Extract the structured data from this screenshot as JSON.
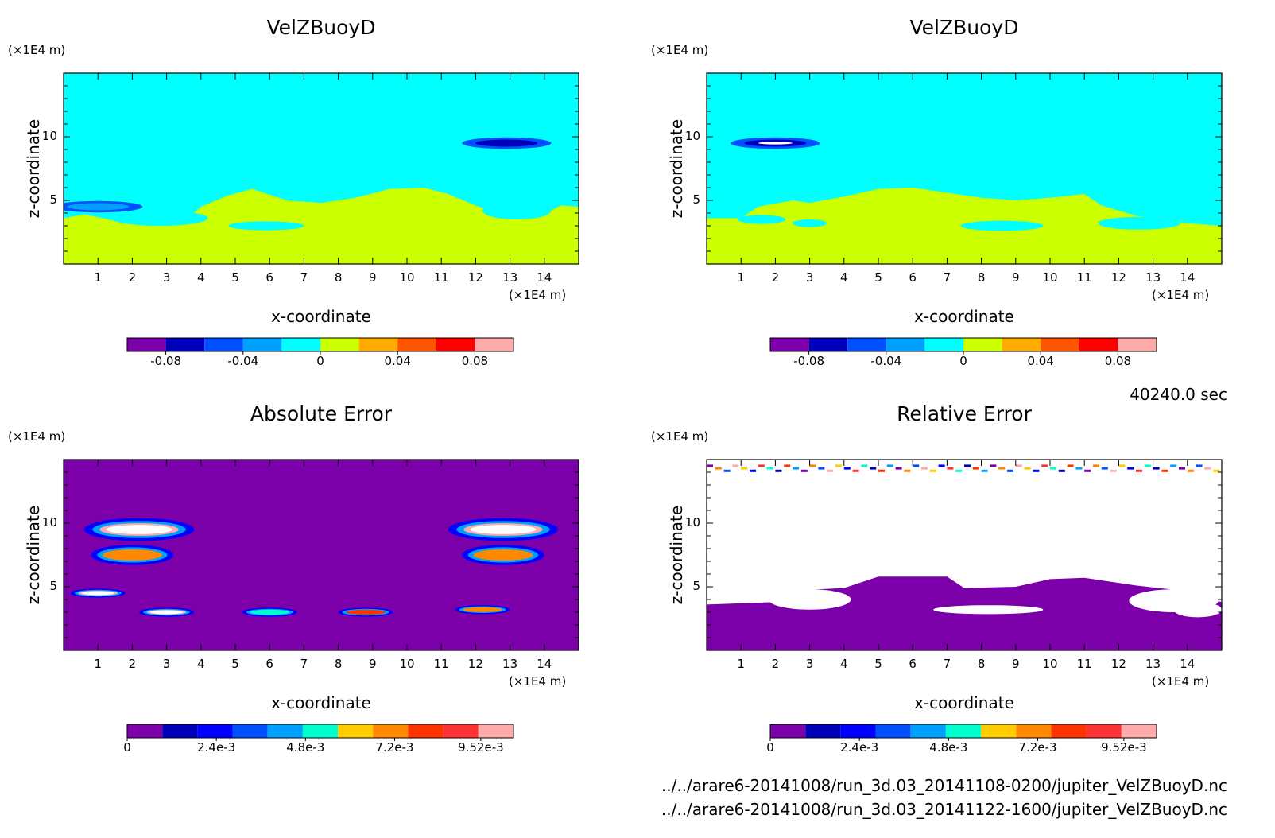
{
  "figure": {
    "timestamp": "40240.0 sec",
    "files": [
      "../../arare6-20141008/run_3d.03_20141108-0200/jupiter_VelZBuoyD.nc",
      "../../arare6-20141008/run_3d.03_20141122-1600/jupiter_VelZBuoyD.nc"
    ]
  },
  "chart_data": [
    {
      "type": "heatmap",
      "title": "VelZBuoyD",
      "xlabel": "x-coordinate",
      "ylabel": "z-coordinate",
      "x_unit": "(×1E4 m)",
      "y_unit": "(×1E4 m)",
      "xlim": [
        0,
        15
      ],
      "ylim": [
        0,
        15
      ],
      "xticks": [
        "1",
        "2",
        "3",
        "4",
        "5",
        "6",
        "7",
        "8",
        "9",
        "10",
        "11",
        "12",
        "13",
        "14"
      ],
      "yticks": [
        "5",
        "10"
      ],
      "background_value": 0,
      "lower_layer_value": 0.01,
      "features": [
        {
          "x": 12.9,
          "z": 9.5,
          "value": -0.07,
          "kind": "downdraft"
        },
        {
          "x": 1.0,
          "z": 4.5,
          "value": -0.04,
          "kind": "weak downdraft"
        }
      ],
      "colorbar": {
        "colors": [
          "#7c00aa",
          "#0000bb",
          "#0050ff",
          "#00a0ff",
          "#00ffff",
          "#ccff00",
          "#ffaa00",
          "#ff5500",
          "#ff0000",
          "#ffaaaa"
        ],
        "tick_labels": [
          "-0.08",
          "-0.04",
          "0",
          "0.04",
          "0.08"
        ]
      }
    },
    {
      "type": "heatmap",
      "title": "VelZBuoyD",
      "xlabel": "x-coordinate",
      "ylabel": "z-coordinate",
      "x_unit": "(×1E4 m)",
      "y_unit": "(×1E4 m)",
      "xlim": [
        0,
        15
      ],
      "ylim": [
        0,
        15
      ],
      "xticks": [
        "1",
        "2",
        "3",
        "4",
        "5",
        "6",
        "7",
        "8",
        "9",
        "10",
        "11",
        "12",
        "13",
        "14"
      ],
      "yticks": [
        "5",
        "10"
      ],
      "background_value": 0,
      "lower_layer_value": 0.01,
      "features": [
        {
          "x": 2.0,
          "z": 9.5,
          "value": -0.08,
          "kind": "downdraft"
        }
      ],
      "colorbar": {
        "colors": [
          "#7c00aa",
          "#0000bb",
          "#0050ff",
          "#00a0ff",
          "#00ffff",
          "#ccff00",
          "#ffaa00",
          "#ff5500",
          "#ff0000",
          "#ffaaaa"
        ],
        "tick_labels": [
          "-0.08",
          "-0.04",
          "0",
          "0.04",
          "0.08"
        ]
      }
    },
    {
      "type": "heatmap",
      "title": "Absolute Error",
      "xlabel": "x-coordinate",
      "ylabel": "z-coordinate",
      "x_unit": "(×1E4 m)",
      "y_unit": "(×1E4 m)",
      "xlim": [
        0,
        15
      ],
      "ylim": [
        0,
        15
      ],
      "xticks": [
        "1",
        "2",
        "3",
        "4",
        "5",
        "6",
        "7",
        "8",
        "9",
        "10",
        "11",
        "12",
        "13",
        "14"
      ],
      "yticks": [
        "5",
        "10"
      ],
      "background_value": 0,
      "features": [
        {
          "x": 2.2,
          "z": 9.5,
          "value": 0.0095
        },
        {
          "x": 12.8,
          "z": 9.5,
          "value": 0.0095
        },
        {
          "x": 2.0,
          "z": 7.5,
          "value": 0.007
        },
        {
          "x": 12.8,
          "z": 7.5,
          "value": 0.007
        },
        {
          "x": 1.0,
          "z": 4.5,
          "value": 0.0095
        },
        {
          "x": 3.0,
          "z": 3.0,
          "value": 0.0095
        },
        {
          "x": 8.8,
          "z": 3.0,
          "value": 0.008
        },
        {
          "x": 6.0,
          "z": 3.0,
          "value": 0.005
        },
        {
          "x": 12.2,
          "z": 3.2,
          "value": 0.007
        }
      ],
      "colorbar": {
        "colors": [
          "#7c00aa",
          "#0000bb",
          "#0000ff",
          "#0050ff",
          "#00a0ff",
          "#00ffcc",
          "#ffcc00",
          "#ff8800",
          "#ff3300",
          "#ff3333",
          "#ffaaaa"
        ],
        "tick_labels": [
          "0",
          "2.4e-3",
          "4.8e-3",
          "7.2e-3",
          "9.52e-3"
        ]
      }
    },
    {
      "type": "heatmap",
      "title": "Relative Error",
      "xlabel": "x-coordinate",
      "ylabel": "z-coordinate",
      "x_unit": "(×1E4 m)",
      "y_unit": "(×1E4 m)",
      "xlim": [
        0,
        15
      ],
      "ylim": [
        0,
        15
      ],
      "xticks": [
        "1",
        "2",
        "3",
        "4",
        "5",
        "6",
        "7",
        "8",
        "9",
        "10",
        "11",
        "12",
        "13",
        "14"
      ],
      "yticks": [
        "5",
        "10"
      ],
      "background_value": "above range",
      "lower_layer_value": 0,
      "colorbar": {
        "colors": [
          "#7c00aa",
          "#0000bb",
          "#0000ff",
          "#0050ff",
          "#00a0ff",
          "#00ffcc",
          "#ffcc00",
          "#ff8800",
          "#ff3300",
          "#ff3333",
          "#ffaaaa"
        ],
        "tick_labels": [
          "0",
          "2.4e-3",
          "4.8e-3",
          "7.2e-3",
          "9.52e-3"
        ]
      }
    }
  ]
}
